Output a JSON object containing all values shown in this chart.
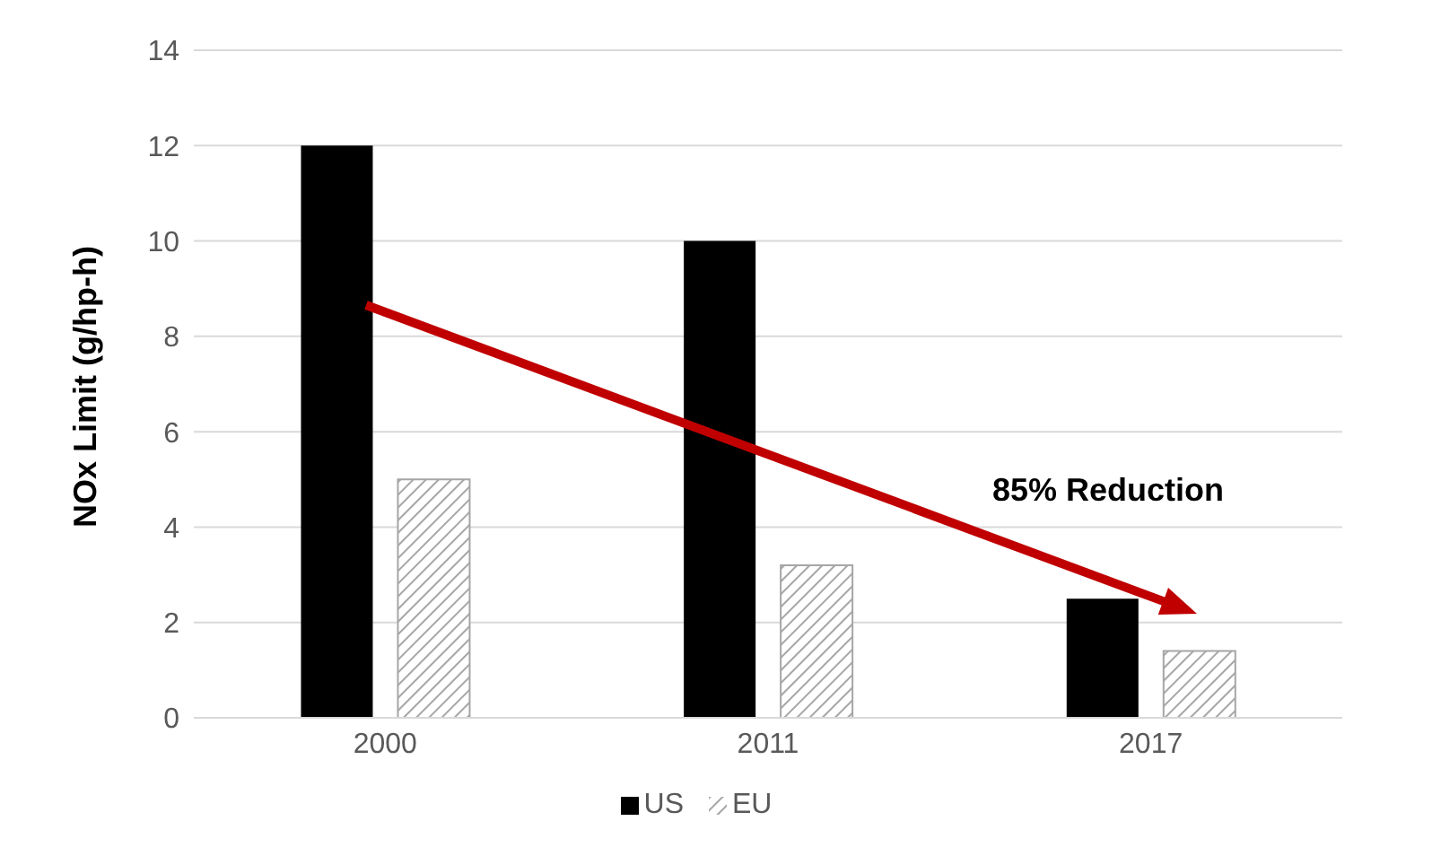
{
  "chart_data": {
    "type": "bar",
    "ylabel": "NOx  Limit (g/hp-h)",
    "categories": [
      "2000",
      "2011",
      "2017"
    ],
    "series": [
      {
        "name": "US",
        "color": "#000000",
        "values": [
          12,
          10,
          2.5
        ]
      },
      {
        "name": "EU",
        "color": "#a6a6a6",
        "values": [
          5,
          3.2,
          1.4
        ]
      }
    ],
    "ylim": [
      0,
      14
    ],
    "yticks": [
      0,
      2,
      4,
      6,
      8,
      10,
      12,
      14
    ],
    "grid": "y",
    "legend": "bottom",
    "annotations": [
      "85% Reduction"
    ]
  }
}
